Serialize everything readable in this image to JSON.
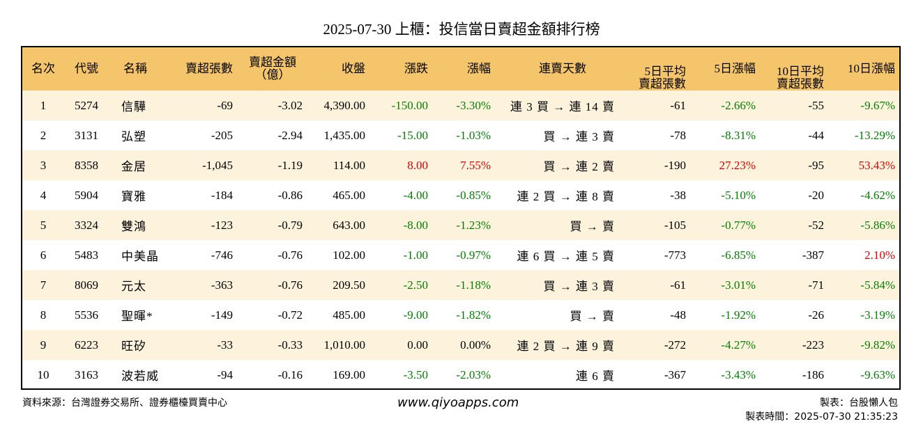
{
  "title": "2025-07-30 上櫃：投信當日賣超金額排行榜",
  "headers": {
    "rank": "名次",
    "code": "代號",
    "name": "名稱",
    "sell_shares": "賣超張數",
    "sell_amount_1": "賣超金額",
    "sell_amount_2": "（億）",
    "close": "收盤",
    "change": "漲跌",
    "pct": "漲幅",
    "streak": "連賣天數",
    "avg5_1": "5日平均",
    "avg5_2": "賣超張數",
    "pct5": "5日漲幅",
    "avg10_1": "10日平均",
    "avg10_2": "賣超張數",
    "pct10": "10日漲幅"
  },
  "rows": [
    {
      "rank": "1",
      "code": "5274",
      "name": "信驊",
      "sell_shares": "-69",
      "sell_amount": "-3.02",
      "close": "4,390.00",
      "change": "-150.00",
      "change_dir": "neg",
      "pct": "-3.30%",
      "pct_dir": "neg",
      "streak": "連 3 買 → 連 14 賣",
      "avg5": "-61",
      "pct5": "-2.66%",
      "pct5_dir": "neg",
      "avg10": "-55",
      "pct10": "-9.67%",
      "pct10_dir": "neg"
    },
    {
      "rank": "2",
      "code": "3131",
      "name": "弘塑",
      "sell_shares": "-205",
      "sell_amount": "-2.94",
      "close": "1,435.00",
      "change": "-15.00",
      "change_dir": "neg",
      "pct": "-1.03%",
      "pct_dir": "neg",
      "streak": "買 → 連 3 賣",
      "avg5": "-78",
      "pct5": "-8.31%",
      "pct5_dir": "neg",
      "avg10": "-44",
      "pct10": "-13.29%",
      "pct10_dir": "neg"
    },
    {
      "rank": "3",
      "code": "8358",
      "name": "金居",
      "sell_shares": "-1,045",
      "sell_amount": "-1.19",
      "close": "114.00",
      "change": "8.00",
      "change_dir": "pos",
      "pct": "7.55%",
      "pct_dir": "pos",
      "streak": "買 → 連 2 賣",
      "avg5": "-190",
      "pct5": "27.23%",
      "pct5_dir": "pos",
      "avg10": "-95",
      "pct10": "53.43%",
      "pct10_dir": "pos"
    },
    {
      "rank": "4",
      "code": "5904",
      "name": "寶雅",
      "sell_shares": "-184",
      "sell_amount": "-0.86",
      "close": "465.00",
      "change": "-4.00",
      "change_dir": "neg",
      "pct": "-0.85%",
      "pct_dir": "neg",
      "streak": "連 2 買 → 連 8 賣",
      "avg5": "-38",
      "pct5": "-5.10%",
      "pct5_dir": "neg",
      "avg10": "-20",
      "pct10": "-4.62%",
      "pct10_dir": "neg"
    },
    {
      "rank": "5",
      "code": "3324",
      "name": "雙鴻",
      "sell_shares": "-123",
      "sell_amount": "-0.79",
      "close": "643.00",
      "change": "-8.00",
      "change_dir": "neg",
      "pct": "-1.23%",
      "pct_dir": "neg",
      "streak": "買 → 賣",
      "avg5": "-105",
      "pct5": "-0.77%",
      "pct5_dir": "neg",
      "avg10": "-52",
      "pct10": "-5.86%",
      "pct10_dir": "neg"
    },
    {
      "rank": "6",
      "code": "5483",
      "name": "中美晶",
      "sell_shares": "-746",
      "sell_amount": "-0.76",
      "close": "102.00",
      "change": "-1.00",
      "change_dir": "neg",
      "pct": "-0.97%",
      "pct_dir": "neg",
      "streak": "連 6 買 → 連 5 賣",
      "avg5": "-773",
      "pct5": "-6.85%",
      "pct5_dir": "neg",
      "avg10": "-387",
      "pct10": "2.10%",
      "pct10_dir": "pos"
    },
    {
      "rank": "7",
      "code": "8069",
      "name": "元太",
      "sell_shares": "-363",
      "sell_amount": "-0.76",
      "close": "209.50",
      "change": "-2.50",
      "change_dir": "neg",
      "pct": "-1.18%",
      "pct_dir": "neg",
      "streak": "買 → 連 3 賣",
      "avg5": "-61",
      "pct5": "-3.01%",
      "pct5_dir": "neg",
      "avg10": "-71",
      "pct10": "-5.84%",
      "pct10_dir": "neg"
    },
    {
      "rank": "8",
      "code": "5536",
      "name": "聖暉*",
      "sell_shares": "-149",
      "sell_amount": "-0.72",
      "close": "485.00",
      "change": "-9.00",
      "change_dir": "neg",
      "pct": "-1.82%",
      "pct_dir": "neg",
      "streak": "買 → 賣",
      "avg5": "-48",
      "pct5": "-1.92%",
      "pct5_dir": "neg",
      "avg10": "-26",
      "pct10": "-3.19%",
      "pct10_dir": "neg"
    },
    {
      "rank": "9",
      "code": "6223",
      "name": "旺矽",
      "sell_shares": "-33",
      "sell_amount": "-0.33",
      "close": "1,010.00",
      "change": "0.00",
      "change_dir": "zero",
      "pct": "0.00%",
      "pct_dir": "zero",
      "streak": "連 2 買 → 連 9 賣",
      "avg5": "-272",
      "pct5": "-4.27%",
      "pct5_dir": "neg",
      "avg10": "-223",
      "pct10": "-9.82%",
      "pct10_dir": "neg"
    },
    {
      "rank": "10",
      "code": "3163",
      "name": "波若威",
      "sell_shares": "-94",
      "sell_amount": "-0.16",
      "close": "169.00",
      "change": "-3.50",
      "change_dir": "neg",
      "pct": "-2.03%",
      "pct_dir": "neg",
      "streak": "連 6 賣",
      "avg5": "-367",
      "pct5": "-3.43%",
      "pct5_dir": "neg",
      "avg10": "-186",
      "pct10": "-9.63%",
      "pct10_dir": "neg"
    }
  ],
  "colors": {
    "header_bg": "#f4c56a",
    "alt_row_bg": "#fdf3dc",
    "positive": "#e00000",
    "negative": "#008000"
  },
  "footer": {
    "source": "資料來源：台灣證券交易所、證券櫃檯買賣中心",
    "site": "www.qiyoapps.com",
    "author": "製表：台股懶人包",
    "time": "製表時間：2025-07-30 21:35:23"
  }
}
